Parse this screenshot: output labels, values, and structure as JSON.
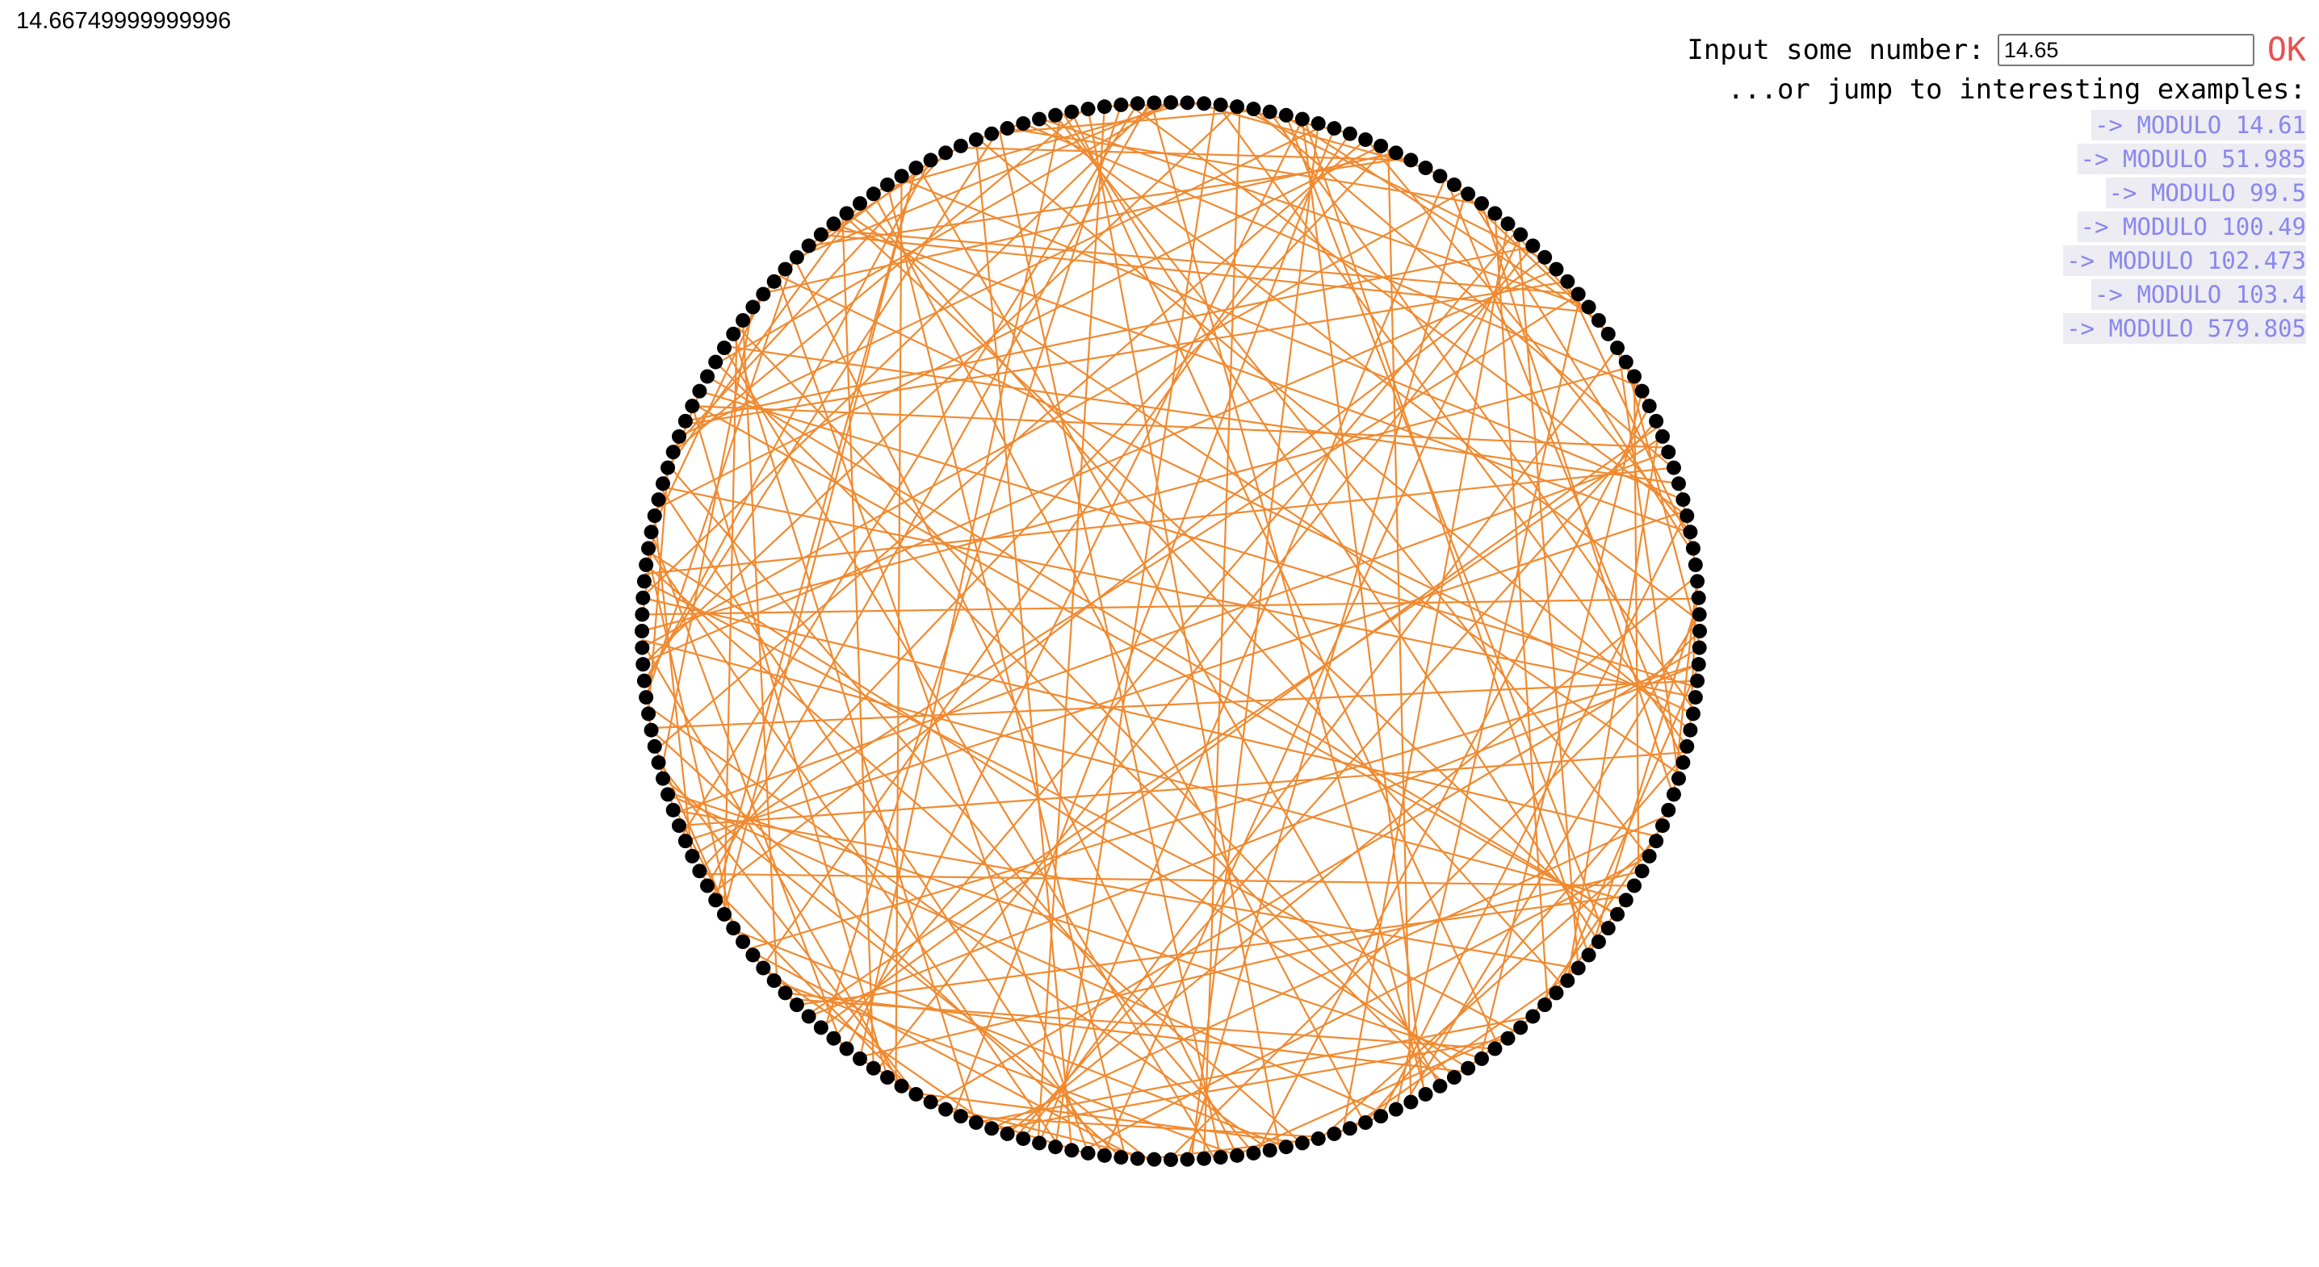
{
  "readout": {
    "value": "14.66749999999996"
  },
  "controls": {
    "input_label": "Input some number:",
    "input_value": "14.65",
    "ok_label": "OK",
    "jump_label": "...or jump to interesting examples:",
    "examples": [
      {
        "label": "-> MODULO 14.61"
      },
      {
        "label": "-> MODULO 51.985"
      },
      {
        "label": "-> MODULO 99.5"
      },
      {
        "label": "-> MODULO 100.49"
      },
      {
        "label": "-> MODULO 102.473"
      },
      {
        "label": "-> MODULO 103.4"
      },
      {
        "label": "-> MODULO 579.805"
      }
    ]
  },
  "colors": {
    "line": "#f08a30",
    "point": "#000000",
    "ok": "#e85050",
    "link_text": "#8a86ee",
    "link_bg": "#ececf2"
  },
  "visualization": {
    "type": "modular-multiplication-circle",
    "multiplier": 14.66749999999996,
    "point_count": 200
  }
}
